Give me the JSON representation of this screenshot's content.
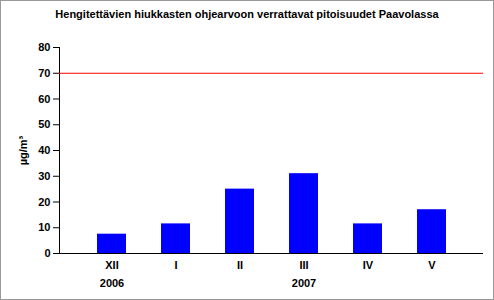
{
  "chart_data": {
    "type": "bar",
    "title": "Hengitettävien hiukkasten ohjearvoon verrattavat pitoisuudet Paavolassa",
    "y_label": "µg/m³",
    "categories": [
      "XII",
      "I",
      "II",
      "III",
      "IV",
      "V"
    ],
    "values": [
      7.5,
      11.5,
      25,
      31,
      11.5,
      17
    ],
    "color": "#0000ff",
    "groups": [
      {
        "label": "2006",
        "categories": [
          "XII"
        ]
      },
      {
        "label": "2007",
        "categories": [
          "I",
          "II",
          "III",
          "IV",
          "V"
        ]
      }
    ],
    "reference_line": {
      "value": 70,
      "color": "#ff0000"
    },
    "ylim": [
      0,
      80
    ],
    "yticks": [
      0,
      10,
      20,
      30,
      40,
      50,
      60,
      70,
      80
    ],
    "grid": false
  }
}
